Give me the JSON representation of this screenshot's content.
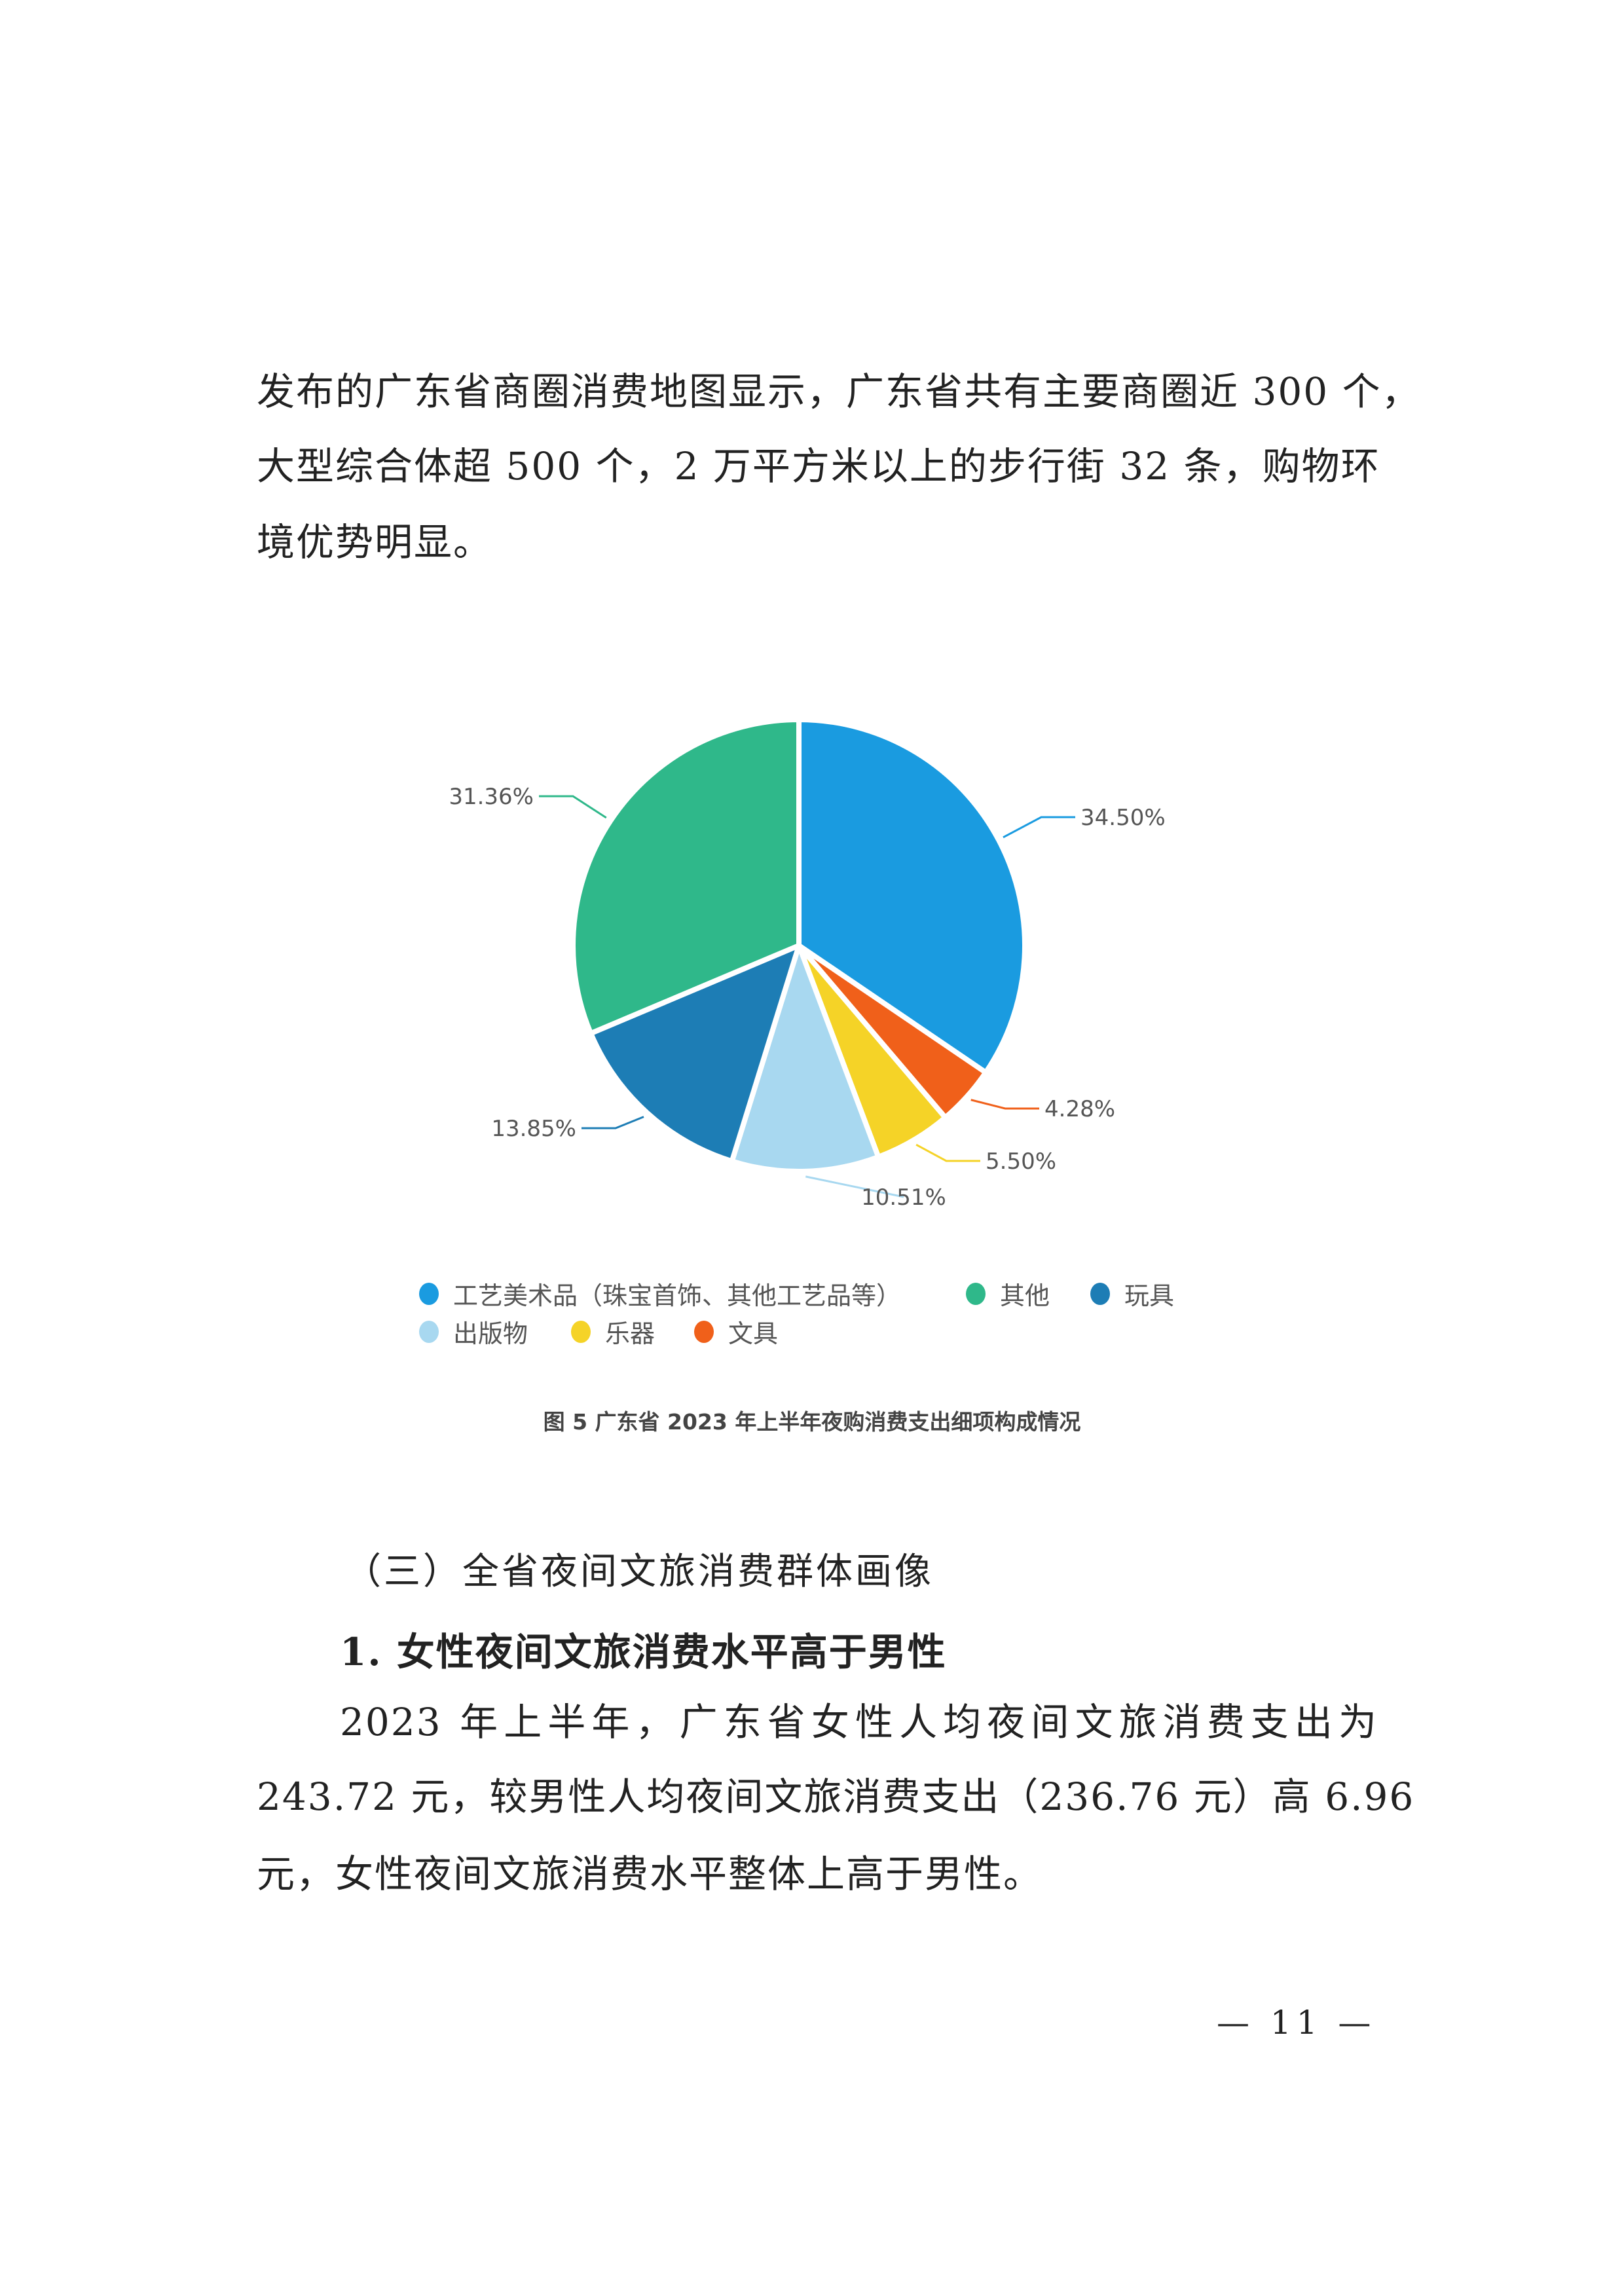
{
  "intro_paragraph": {
    "lines": [
      "发布的广东省商圈消费地图显示，广东省共有主要商圈近 300 个，",
      "大型综合体超 500 个，2 万平方米以上的步行街 32 条，购物环",
      "境优势明显。"
    ]
  },
  "chart_data": {
    "type": "pie",
    "title": "图 5  广东省 2023 年上半年夜购消费支出细项构成情况",
    "start_angle": "12 o'clock",
    "direction": "clockwise",
    "legend_placement": "bottom",
    "slices": [
      {
        "name": "工艺美术品（珠宝首饰、其他工艺品等）",
        "value": 34.5,
        "label": "34.50%",
        "color": "#1a9be0"
      },
      {
        "name": "文具",
        "value": 4.28,
        "label": "4.28%",
        "color": "#f0601a"
      },
      {
        "name": "乐器",
        "value": 5.5,
        "label": "5.50%",
        "color": "#f5d327"
      },
      {
        "name": "出版物",
        "value": 10.51,
        "label": "10.51%",
        "color": "#a8d8f0"
      },
      {
        "name": "玩具",
        "value": 13.85,
        "label": "13.85%",
        "color": "#1d7db5"
      },
      {
        "name": "其他",
        "value": 31.36,
        "label": "31.36%",
        "color": "#2fb88a"
      }
    ],
    "legend": [
      {
        "name": "工艺美术品（珠宝首饰、其他工艺品等）",
        "color": "#1a9be0"
      },
      {
        "name": "其他",
        "color": "#2fb88a"
      },
      {
        "name": "玩具",
        "color": "#1d7db5"
      },
      {
        "name": "出版物",
        "color": "#a8d8f0"
      },
      {
        "name": "乐器",
        "color": "#f5d327"
      },
      {
        "name": "文具",
        "color": "#f0601a"
      }
    ]
  },
  "section": {
    "heading": "（三）全省夜间文旅消费群体画像",
    "subheading": "1. 女性夜间文旅消费水平高于男性",
    "lines": [
      "2023 年上半年，广东省女性人均夜间文旅消费支出为",
      "243.72 元，较男性人均夜间文旅消费支出（236.76 元）高 6.96",
      "元，女性夜间文旅消费水平整体上高于男性。"
    ]
  },
  "page_number": "— 11 —"
}
